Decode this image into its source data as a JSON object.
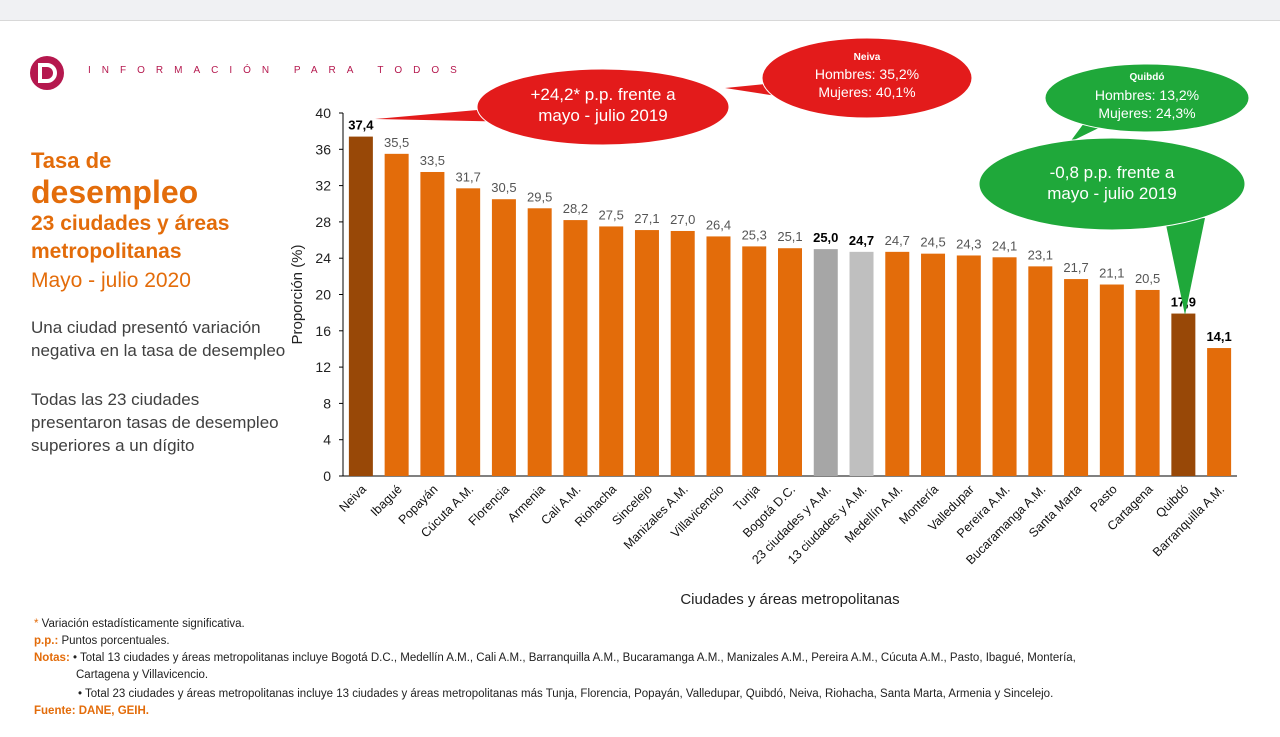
{
  "header": {
    "tagline": "INFORMACIÓN PARA TODOS",
    "logo_letter": "D"
  },
  "title": {
    "line1": "Tasa de",
    "line2": "desempleo",
    "line3": "23 ciudades y áreas metropolitanas",
    "line4": "Mayo - julio 2020"
  },
  "text": {
    "p1": "Una ciudad presentó variación negativa en la tasa de desempleo",
    "p2": "Todas las 23 ciudades presentaron tasas de desempleo superiores a un dígito"
  },
  "callouts": {
    "neiva_change": {
      "line1": "+24,2* p.p. frente a",
      "line2": "mayo - julio 2019",
      "color": "#e31b1b"
    },
    "neiva_sex": {
      "title": "Neiva",
      "line1": "Hombres: 35,2%",
      "line2": "Mujeres: 40,1%",
      "color": "#e31b1b"
    },
    "quibdo_sex": {
      "title": "Quibdó",
      "line1": "Hombres: 13,2%",
      "line2": "Mujeres: 24,3%",
      "color": "#1fa83a"
    },
    "quibdo_change": {
      "line1": "-0,8 p.p. frente a",
      "line2": "mayo - julio 2019",
      "color": "#1fa83a"
    }
  },
  "chart_data": {
    "type": "bar",
    "xlabel": "Ciudades y áreas metropolitanas",
    "ylabel": "Proporción (%)",
    "ylim": [
      0,
      40
    ],
    "yticks": [
      0,
      4,
      8,
      12,
      16,
      20,
      24,
      28,
      32,
      36,
      40
    ],
    "grid": false,
    "categories": [
      "Neiva",
      "Ibagué",
      "Popayán",
      "Cúcuta A.M.",
      "Florencia",
      "Armenia",
      "Cali A.M.",
      "Riohacha",
      "Sincelejo",
      "Manizales A.M.",
      "Villavicencio",
      "Tunja",
      "Bogotá  D.C.",
      "23 ciudades y A.M.",
      "13 ciudades y A.M.",
      "Medellín A.M.",
      "Montería",
      "Valledupar",
      "Pereira A.M.",
      "Bucaramanga A.M.",
      "Santa Marta",
      "Pasto",
      "Cartagena",
      "Quibdó",
      "Barranquilla A.M."
    ],
    "values": [
      37.4,
      35.5,
      33.5,
      31.7,
      30.5,
      29.5,
      28.2,
      27.5,
      27.1,
      27.0,
      26.4,
      25.3,
      25.1,
      25.0,
      24.7,
      24.7,
      24.5,
      24.3,
      24.1,
      23.1,
      21.7,
      21.1,
      20.5,
      17.9,
      14.1
    ],
    "value_labels": [
      "37,4",
      "35,5",
      "33,5",
      "31,7",
      "30,5",
      "29,5",
      "28,2",
      "27,5",
      "27,1",
      "27,0",
      "26,4",
      "25,3",
      "25,1",
      "25,0",
      "24,7",
      "24,7",
      "24,5",
      "24,3",
      "24,1",
      "23,1",
      "21,7",
      "21,1",
      "20,5",
      "17,9",
      "14,1"
    ],
    "bar_colors": [
      "#984807",
      "#e36c0a",
      "#e36c0a",
      "#e36c0a",
      "#e36c0a",
      "#e36c0a",
      "#e36c0a",
      "#e36c0a",
      "#e36c0a",
      "#e36c0a",
      "#e36c0a",
      "#e36c0a",
      "#e36c0a",
      "#a6a6a6",
      "#bfbfbf",
      "#e36c0a",
      "#e36c0a",
      "#e36c0a",
      "#e36c0a",
      "#e36c0a",
      "#e36c0a",
      "#e36c0a",
      "#e36c0a",
      "#984807",
      "#e36c0a"
    ],
    "bold_labels": [
      0,
      13,
      14,
      23,
      24
    ]
  },
  "notes": {
    "sig_mark": "*",
    "sig": " Variación estadísticamente significativa.",
    "pp_label": "p.p.:",
    "pp": " Puntos porcentuales.",
    "notas_label": "Notas:",
    "nota1": " • Total 13 ciudades y áreas metropolitanas incluye Bogotá D.C., Medellín A.M., Cali A.M., Barranquilla A.M., Bucaramanga A.M., Manizales A.M., Pereira A.M., Cúcuta A.M., Pasto, Ibagué, Montería,",
    "nota1b": "Cartagena y Villavicencio.",
    "nota2": "• Total 23 ciudades y áreas metropolitanas incluye 13 ciudades y áreas metropolitanas más Tunja, Florencia, Popayán, Valledupar, Quibdó, Neiva, Riohacha, Santa Marta, Armenia y Sincelejo.",
    "fuente": "Fuente: DANE, GEIH."
  }
}
